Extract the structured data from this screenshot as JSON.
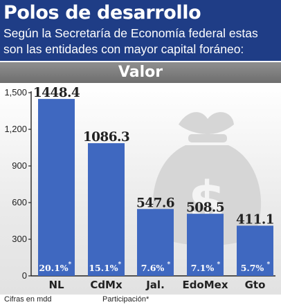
{
  "header": {
    "title": "Polos de desarrollo",
    "subtitle": "Según la Secretaría de Economía federal estas son las entidades con mayor capital foráneo:"
  },
  "section_label": "Valor",
  "footnotes": {
    "units": "Cifras en mdd",
    "share": "Participación*"
  },
  "colors": {
    "header_bg": "#1f3d86",
    "bar": "#3f68c0",
    "section_bg": "#7a7a7a"
  },
  "icon": "money-bag-icon",
  "chart_data": {
    "type": "bar",
    "title": "",
    "xlabel": "",
    "ylabel": "",
    "ylim": [
      0,
      1500
    ],
    "yticks": [
      0,
      300,
      600,
      900,
      1200,
      1500
    ],
    "ytick_labels": [
      "0",
      "300",
      "600",
      "900",
      "1,200",
      "1,500"
    ],
    "categories": [
      "NL",
      "CdMx",
      "Jal.",
      "EdoMex",
      "Gto"
    ],
    "values": [
      1448.4,
      1086.3,
      547.6,
      508.5,
      411.1
    ],
    "value_labels": [
      "1448.4",
      "1086.3",
      "547.6",
      "508.5",
      "411.1"
    ],
    "share_labels": [
      "20.1%",
      "15.1%",
      "7.6%",
      "7.1%",
      "5.7%"
    ],
    "share_marker": "*"
  }
}
